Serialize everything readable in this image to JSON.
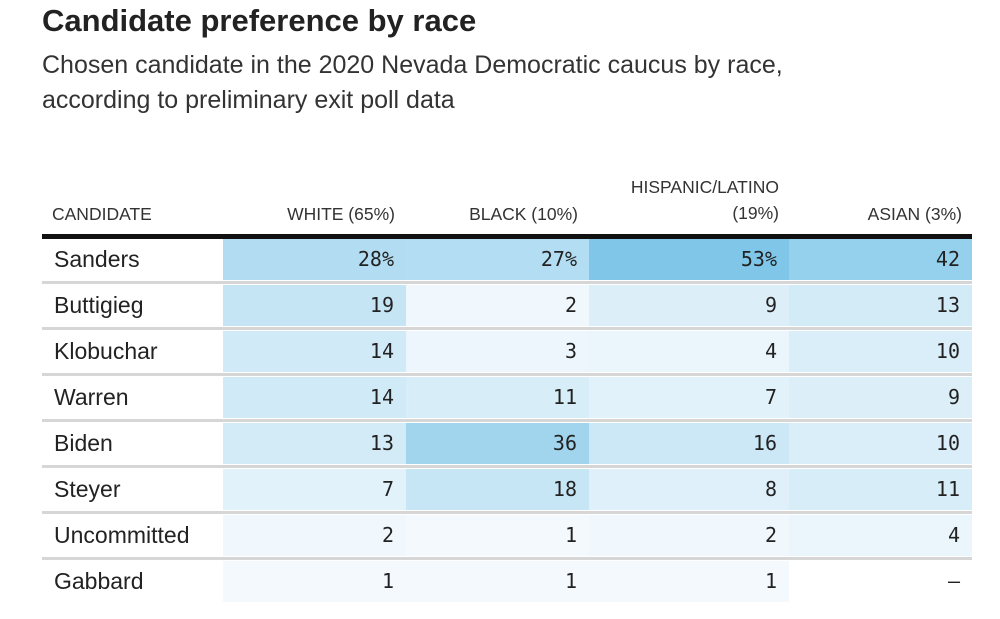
{
  "title": "Candidate preference by race",
  "subtitle_line1": "Chosen candidate in the 2020 Nevada Democratic caucus by race,",
  "subtitle_line2": "according to preliminary exit poll data",
  "colors": {
    "heat_min": "#f7fbfe",
    "heat_max": "#7fc6e8",
    "header_rule": "#111111",
    "row_rule": "#d6d6d6"
  },
  "chart_data": {
    "type": "heatmap",
    "title": "Candidate preference by race",
    "columns": [
      {
        "key": "candidate",
        "label": "CANDIDATE"
      },
      {
        "key": "white",
        "label": "WHITE (65%)"
      },
      {
        "key": "black",
        "label": "BLACK (10%)"
      },
      {
        "key": "hispanic",
        "label_line1": "HISPANIC/LATINO",
        "label_line2": "(19%)"
      },
      {
        "key": "asian",
        "label": "ASIAN (3%)"
      }
    ],
    "rows": [
      {
        "candidate": "Sanders",
        "values": [
          28,
          27,
          53,
          42
        ],
        "display": [
          "28%",
          "27%",
          "53%",
          "42"
        ]
      },
      {
        "candidate": "Buttigieg",
        "values": [
          19,
          2,
          9,
          13
        ],
        "display": [
          "19",
          "2",
          "9",
          "13"
        ]
      },
      {
        "candidate": "Klobuchar",
        "values": [
          14,
          3,
          4,
          10
        ],
        "display": [
          "14",
          "3",
          "4",
          "10"
        ]
      },
      {
        "candidate": "Warren",
        "values": [
          14,
          11,
          7,
          9
        ],
        "display": [
          "14",
          "11",
          "7",
          "9"
        ]
      },
      {
        "candidate": "Biden",
        "values": [
          13,
          36,
          16,
          10
        ],
        "display": [
          "13",
          "36",
          "16",
          "10"
        ]
      },
      {
        "candidate": "Steyer",
        "values": [
          7,
          18,
          8,
          11
        ],
        "display": [
          "7",
          "18",
          "8",
          "11"
        ]
      },
      {
        "candidate": "Uncommitted",
        "values": [
          2,
          1,
          2,
          4
        ],
        "display": [
          "2",
          "1",
          "2",
          "4"
        ]
      },
      {
        "candidate": "Gabbard",
        "values": [
          1,
          1,
          1,
          null
        ],
        "display": [
          "1",
          "1",
          "1",
          "–"
        ]
      }
    ]
  }
}
